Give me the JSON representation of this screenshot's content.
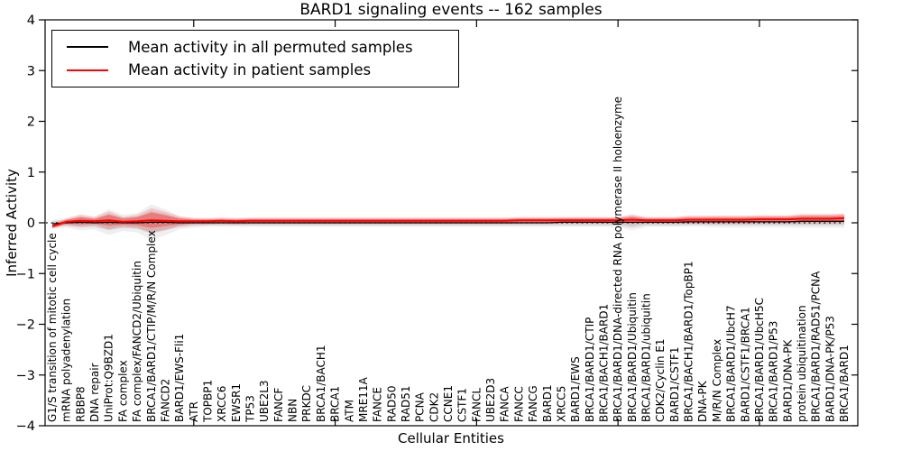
{
  "chart_data": {
    "type": "line",
    "title": "BARD1 signaling events -- 162 samples",
    "xlabel": "Cellular Entities",
    "ylabel": "Inferred Activity",
    "ylim": [
      -4,
      4
    ],
    "yticks": [
      -4,
      -3,
      -2,
      -1,
      0,
      1,
      2,
      3,
      4
    ],
    "x_major_tick_every": 10,
    "grid": false,
    "legend_position": "upper left",
    "zero_line": {
      "value": 0,
      "style": "dotted",
      "color": "#000000"
    },
    "legend": {
      "entries": [
        {
          "label": "Mean activity in all permuted samples",
          "color": "#000000"
        },
        {
          "label": "Mean activity in patient samples",
          "color": "#ff0000"
        }
      ]
    },
    "categories": [
      "G1/S transition of mitotic cell cycle",
      "mRNA polyadenylation",
      "RBBP8",
      "DNA repair",
      "UniProt:Q9BZD1",
      "FA complex",
      "FA complex/FANCD2/Ubiquitin",
      "BRCA1/BARD1/CTIP/M/R/N Complex",
      "FANCD2",
      "BARD1/EWS-Fli1",
      "ATR",
      "TOPBP1",
      "XRCC6",
      "EWSR1",
      "TP53",
      "UBE2L3",
      "FANCF",
      "NBN",
      "PRKDC",
      "BRCA1/BACH1",
      "BRCA1",
      "ATM",
      "MRE11A",
      "FANCE",
      "RAD50",
      "RAD51",
      "PCNA",
      "CDK2",
      "CCNE1",
      "CSTF1",
      "FANCL",
      "UBE2D3",
      "FANCA",
      "FANCC",
      "FANCG",
      "BARD1",
      "XRCC5",
      "BARD1/EWS",
      "BRCA1/BARD1/CTIP",
      "BRCA1/BACH1/BARD1",
      "BRCA1/BARD1/DNA-directed RNA polymerase II holoenzyme",
      "BRCA1/BARD1/Ubiquitin",
      "BRCA1/BARD1/ubiquitin",
      "CDK2/Cyclin E1",
      "BARD1/CSTF1",
      "BRCA1/BACH1/BARD1/TopBP1",
      "DNA-PK",
      "M/R/N Complex",
      "BRCA1/BARD1/UbcH7",
      "BARD1/CSTF1/BRCA1",
      "BRCA1/BARD1/UbcH5C",
      "BRCA1/BARD1/P53",
      "BARD1/DNA-PK",
      "protein ubiquitination",
      "BRCA1/BARD1/RAD51/PCNA",
      "BARD1/DNA-PK/P53",
      "BRCA1/BARD1"
    ],
    "series": [
      {
        "name": "Mean activity in all permuted samples",
        "color": "#000000",
        "band_color": "#999999",
        "values": [
          -0.02,
          0.0,
          0.01,
          0.0,
          0.01,
          0.0,
          0.0,
          0.01,
          0.01,
          0.0,
          0.0,
          0.0,
          0.0,
          0.0,
          0.0,
          0.0,
          0.0,
          0.0,
          0.0,
          0.0,
          0.0,
          0.0,
          0.0,
          0.0,
          0.0,
          0.0,
          0.0,
          0.0,
          0.0,
          0.0,
          0.0,
          0.0,
          0.0,
          0.0,
          0.0,
          0.0,
          0.01,
          0.01,
          0.01,
          0.01,
          0.01,
          0.01,
          0.01,
          0.01,
          0.01,
          0.02,
          0.02,
          0.02,
          0.02,
          0.02,
          0.02,
          0.02,
          0.02,
          0.03,
          0.03,
          0.03,
          0.03
        ],
        "band_halfwidth": [
          0.05,
          0.06,
          0.1,
          0.08,
          0.16,
          0.1,
          0.12,
          0.22,
          0.16,
          0.08,
          0.06,
          0.05,
          0.05,
          0.05,
          0.05,
          0.05,
          0.05,
          0.05,
          0.05,
          0.05,
          0.05,
          0.05,
          0.05,
          0.05,
          0.05,
          0.05,
          0.05,
          0.05,
          0.05,
          0.05,
          0.05,
          0.05,
          0.05,
          0.05,
          0.05,
          0.05,
          0.06,
          0.06,
          0.06,
          0.06,
          0.06,
          0.1,
          0.06,
          0.06,
          0.06,
          0.06,
          0.06,
          0.07,
          0.07,
          0.07,
          0.07,
          0.07,
          0.07,
          0.08,
          0.08,
          0.08,
          0.08
        ]
      },
      {
        "name": "Mean activity in patient samples",
        "color": "#ff0000",
        "band_color": "#ff0000",
        "values": [
          -0.07,
          0.02,
          0.04,
          0.03,
          0.05,
          0.02,
          0.03,
          0.05,
          0.04,
          0.03,
          0.03,
          0.03,
          0.04,
          0.03,
          0.04,
          0.04,
          0.04,
          0.04,
          0.04,
          0.04,
          0.04,
          0.04,
          0.04,
          0.04,
          0.04,
          0.04,
          0.04,
          0.04,
          0.04,
          0.04,
          0.04,
          0.04,
          0.04,
          0.05,
          0.05,
          0.05,
          0.05,
          0.05,
          0.05,
          0.05,
          0.05,
          0.06,
          0.05,
          0.05,
          0.05,
          0.06,
          0.06,
          0.06,
          0.06,
          0.06,
          0.07,
          0.07,
          0.07,
          0.08,
          0.08,
          0.08,
          0.09
        ],
        "band_halfwidth": [
          0.03,
          0.04,
          0.07,
          0.05,
          0.11,
          0.06,
          0.08,
          0.15,
          0.11,
          0.06,
          0.04,
          0.04,
          0.04,
          0.04,
          0.04,
          0.04,
          0.04,
          0.04,
          0.04,
          0.04,
          0.04,
          0.04,
          0.04,
          0.04,
          0.04,
          0.04,
          0.04,
          0.04,
          0.04,
          0.04,
          0.04,
          0.04,
          0.04,
          0.04,
          0.04,
          0.04,
          0.04,
          0.04,
          0.04,
          0.04,
          0.04,
          0.06,
          0.04,
          0.04,
          0.04,
          0.05,
          0.05,
          0.05,
          0.05,
          0.05,
          0.05,
          0.05,
          0.05,
          0.06,
          0.06,
          0.06,
          0.06
        ]
      }
    ]
  }
}
